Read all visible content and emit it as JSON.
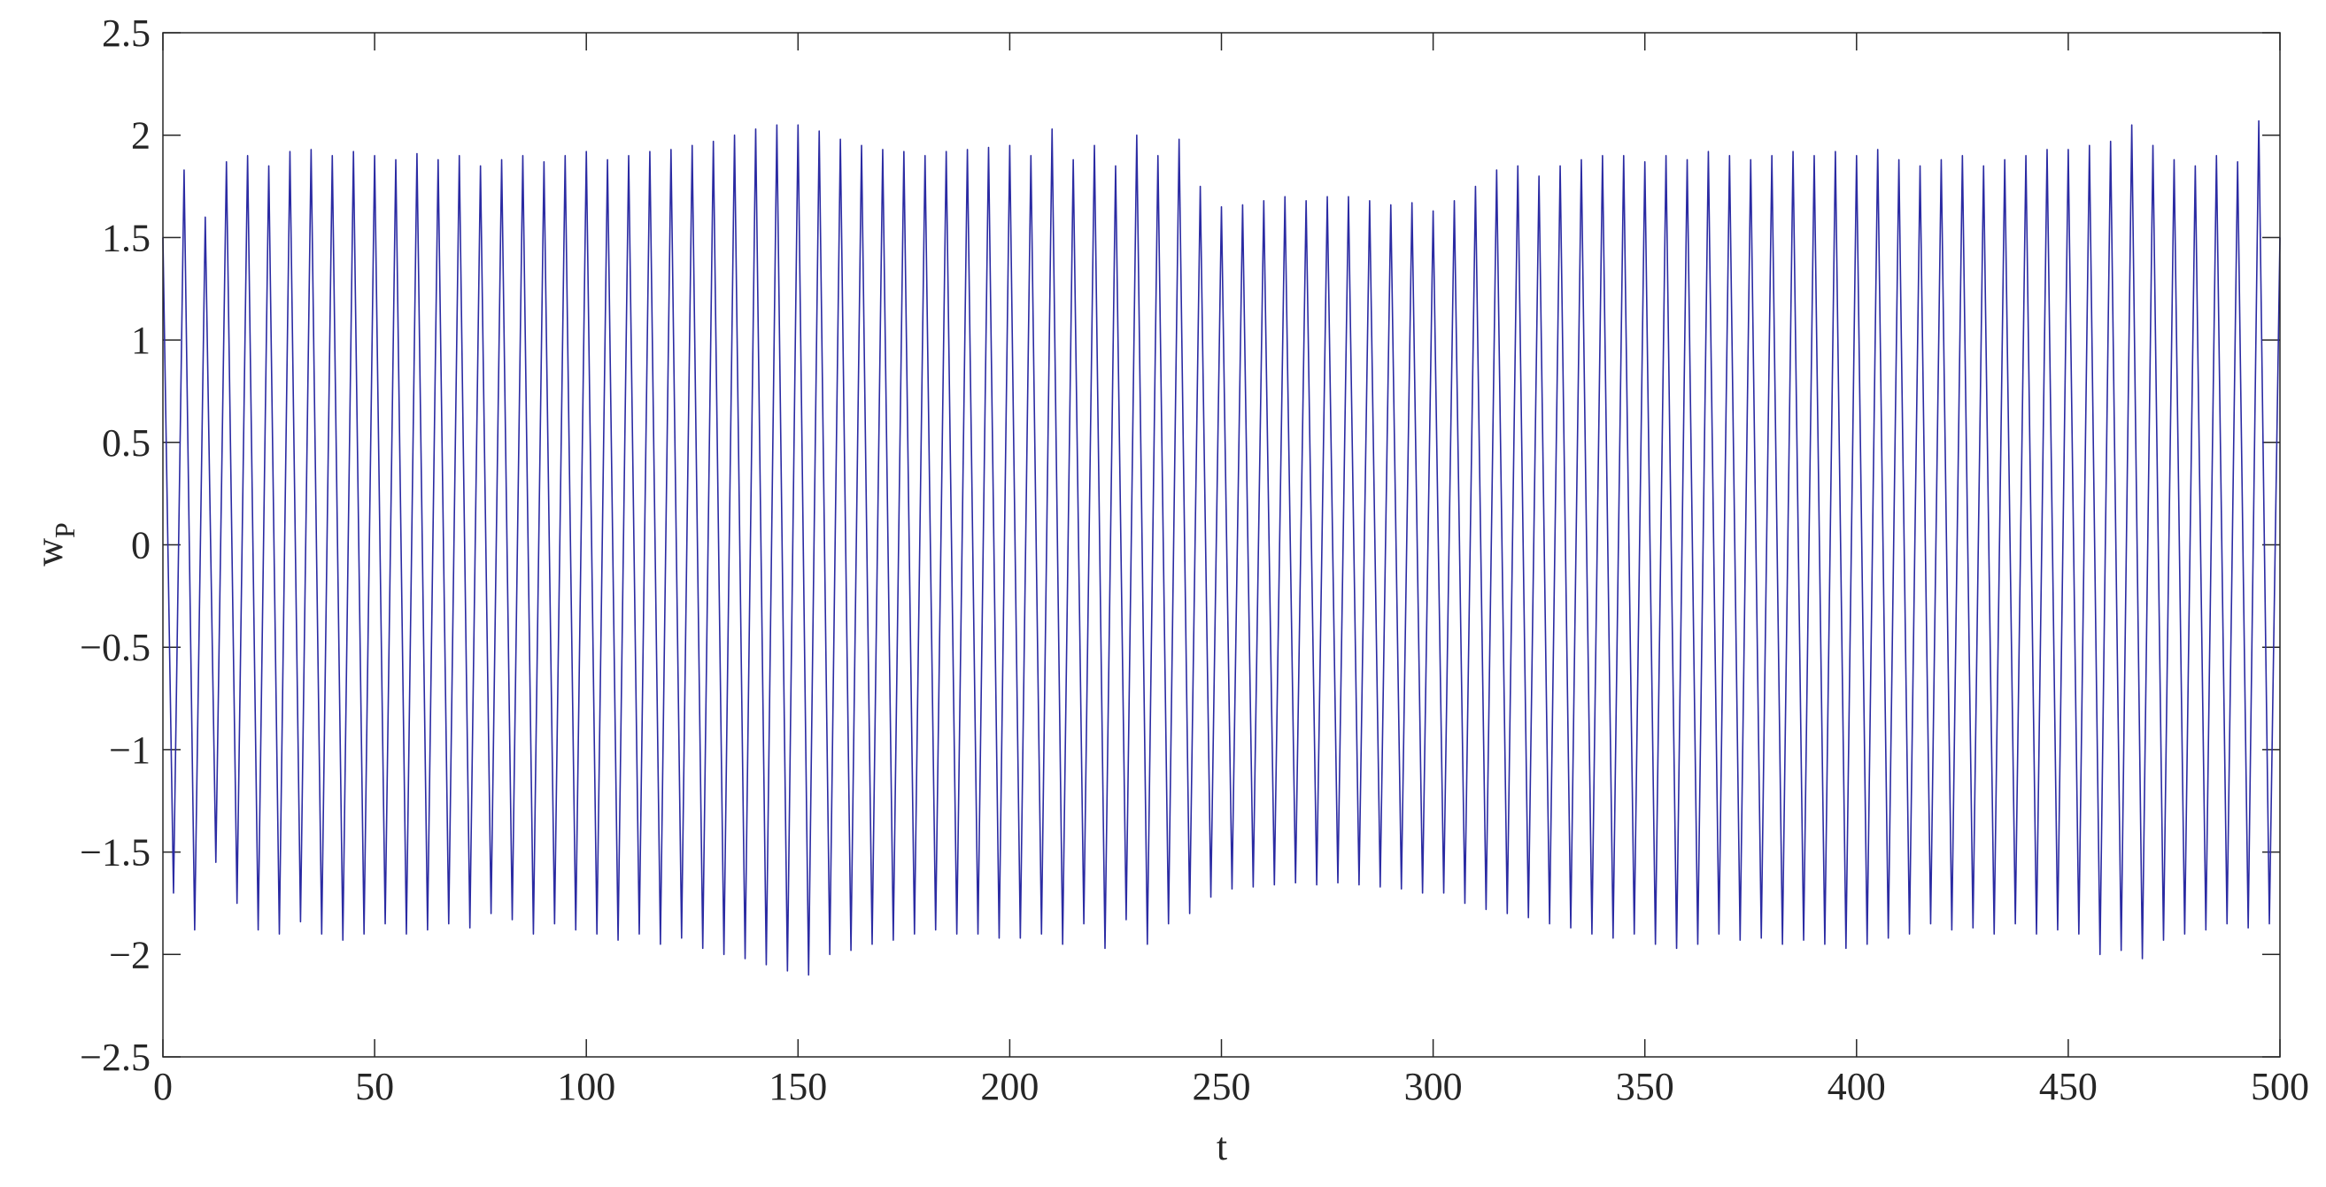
{
  "chart_data": {
    "type": "line",
    "xlabel": "t",
    "ylabel": "w",
    "ylabel_subscript": "P",
    "color": "#2b2ba3",
    "xlim": [
      0,
      500
    ],
    "xticks": [
      0,
      50,
      100,
      150,
      200,
      250,
      300,
      350,
      400,
      450,
      500
    ],
    "ylim": [
      -2.5,
      2.5
    ],
    "yticks": [
      {
        "value": -2.5,
        "label": "−2.5"
      },
      {
        "value": -2,
        "label": "−2"
      },
      {
        "value": -1.5,
        "label": "−1.5"
      },
      {
        "value": -1,
        "label": "−1"
      },
      {
        "value": -0.5,
        "label": "−0.5"
      },
      0,
      0.5,
      1,
      1.5,
      2,
      2.5
    ],
    "x": [
      0,
      2.5,
      5,
      7.5,
      10,
      12.5,
      15,
      17.5,
      20,
      22.5,
      25,
      27.5,
      30,
      32.5,
      35,
      37.5,
      40,
      42.5,
      45,
      47.5,
      50,
      52.5,
      55,
      57.5,
      60,
      62.5,
      65,
      67.5,
      70,
      72.5,
      75,
      77.5,
      80,
      82.5,
      85,
      87.5,
      90,
      92.5,
      95,
      97.5,
      100,
      102.5,
      105,
      107.5,
      110,
      112.5,
      115,
      117.5,
      120,
      122.5,
      125,
      127.5,
      130,
      132.5,
      135,
      137.5,
      140,
      142.5,
      145,
      147.5,
      150,
      152.5,
      155,
      157.5,
      160,
      162.5,
      165,
      167.5,
      170,
      172.5,
      175,
      177.5,
      180,
      182.5,
      185,
      187.5,
      190,
      192.5,
      195,
      197.5,
      200,
      202.5,
      205,
      207.5,
      210,
      212.5,
      215,
      217.5,
      220,
      222.5,
      225,
      227.5,
      230,
      232.5,
      235,
      237.5,
      240,
      242.5,
      245,
      247.5,
      250,
      252.5,
      255,
      257.5,
      260,
      262.5,
      265,
      267.5,
      270,
      272.5,
      275,
      277.5,
      280,
      282.5,
      285,
      287.5,
      290,
      292.5,
      295,
      297.5,
      300,
      302.5,
      305,
      307.5,
      310,
      312.5,
      315,
      317.5,
      320,
      322.5,
      325,
      327.5,
      330,
      332.5,
      335,
      337.5,
      340,
      342.5,
      345,
      347.5,
      350,
      352.5,
      355,
      357.5,
      360,
      362.5,
      365,
      367.5,
      370,
      372.5,
      375,
      377.5,
      380,
      382.5,
      385,
      387.5,
      390,
      392.5,
      395,
      397.5,
      400,
      402.5,
      405,
      407.5,
      410,
      412.5,
      415,
      417.5,
      420,
      422.5,
      425,
      427.5,
      430,
      432.5,
      435,
      437.5,
      440,
      442.5,
      445,
      447.5,
      450,
      452.5,
      455,
      457.5,
      460,
      462.5,
      465,
      467.5,
      470,
      472.5,
      475,
      477.5,
      480,
      482.5,
      485,
      487.5,
      490,
      492.5,
      495,
      497.5,
      500
    ],
    "values": [
      1.5,
      -1.7,
      1.83,
      -1.88,
      1.6,
      -1.55,
      1.87,
      -1.75,
      1.9,
      -1.88,
      1.85,
      -1.9,
      1.92,
      -1.84,
      1.93,
      -1.9,
      1.9,
      -1.93,
      1.92,
      -1.9,
      1.9,
      -1.85,
      1.88,
      -1.9,
      1.91,
      -1.88,
      1.88,
      -1.85,
      1.9,
      -1.87,
      1.85,
      -1.8,
      1.88,
      -1.83,
      1.9,
      -1.9,
      1.87,
      -1.85,
      1.9,
      -1.88,
      1.92,
      -1.9,
      1.88,
      -1.93,
      1.9,
      -1.9,
      1.92,
      -1.95,
      1.93,
      -1.92,
      1.95,
      -1.97,
      1.97,
      -2.0,
      2.0,
      -2.02,
      2.03,
      -2.05,
      2.05,
      -2.08,
      2.05,
      -2.1,
      2.02,
      -2.0,
      1.98,
      -1.98,
      1.95,
      -1.95,
      1.93,
      -1.93,
      1.92,
      -1.9,
      1.9,
      -1.88,
      1.92,
      -1.9,
      1.93,
      -1.9,
      1.94,
      -1.92,
      1.95,
      -1.92,
      1.9,
      -1.9,
      2.03,
      -1.95,
      1.88,
      -1.85,
      1.95,
      -1.97,
      1.85,
      -1.83,
      2.0,
      -1.95,
      1.9,
      -1.85,
      1.98,
      -1.8,
      1.75,
      -1.72,
      1.65,
      -1.68,
      1.66,
      -1.67,
      1.68,
      -1.66,
      1.7,
      -1.65,
      1.68,
      -1.66,
      1.7,
      -1.65,
      1.7,
      -1.66,
      1.68,
      -1.67,
      1.66,
      -1.68,
      1.67,
      -1.7,
      1.63,
      -1.7,
      1.68,
      -1.75,
      1.75,
      -1.78,
      1.83,
      -1.8,
      1.85,
      -1.82,
      1.8,
      -1.85,
      1.85,
      -1.87,
      1.88,
      -1.9,
      1.9,
      -1.92,
      1.9,
      -1.9,
      1.87,
      -1.95,
      1.9,
      -1.97,
      1.88,
      -1.95,
      1.92,
      -1.9,
      1.9,
      -1.93,
      1.88,
      -1.92,
      1.9,
      -1.95,
      1.92,
      -1.93,
      1.9,
      -1.95,
      1.92,
      -1.97,
      1.9,
      -1.95,
      1.93,
      -1.92,
      1.88,
      -1.9,
      1.85,
      -1.85,
      1.88,
      -1.88,
      1.9,
      -1.87,
      1.85,
      -1.9,
      1.88,
      -1.85,
      1.9,
      -1.9,
      1.93,
      -1.88,
      1.93,
      -1.9,
      1.95,
      -2.0,
      1.97,
      -1.98,
      2.05,
      -2.02,
      1.95,
      -1.93,
      1.88,
      -1.9,
      1.85,
      -1.88,
      1.9,
      -1.85,
      1.87,
      -1.87,
      2.07,
      -1.85,
      1.5
    ]
  }
}
